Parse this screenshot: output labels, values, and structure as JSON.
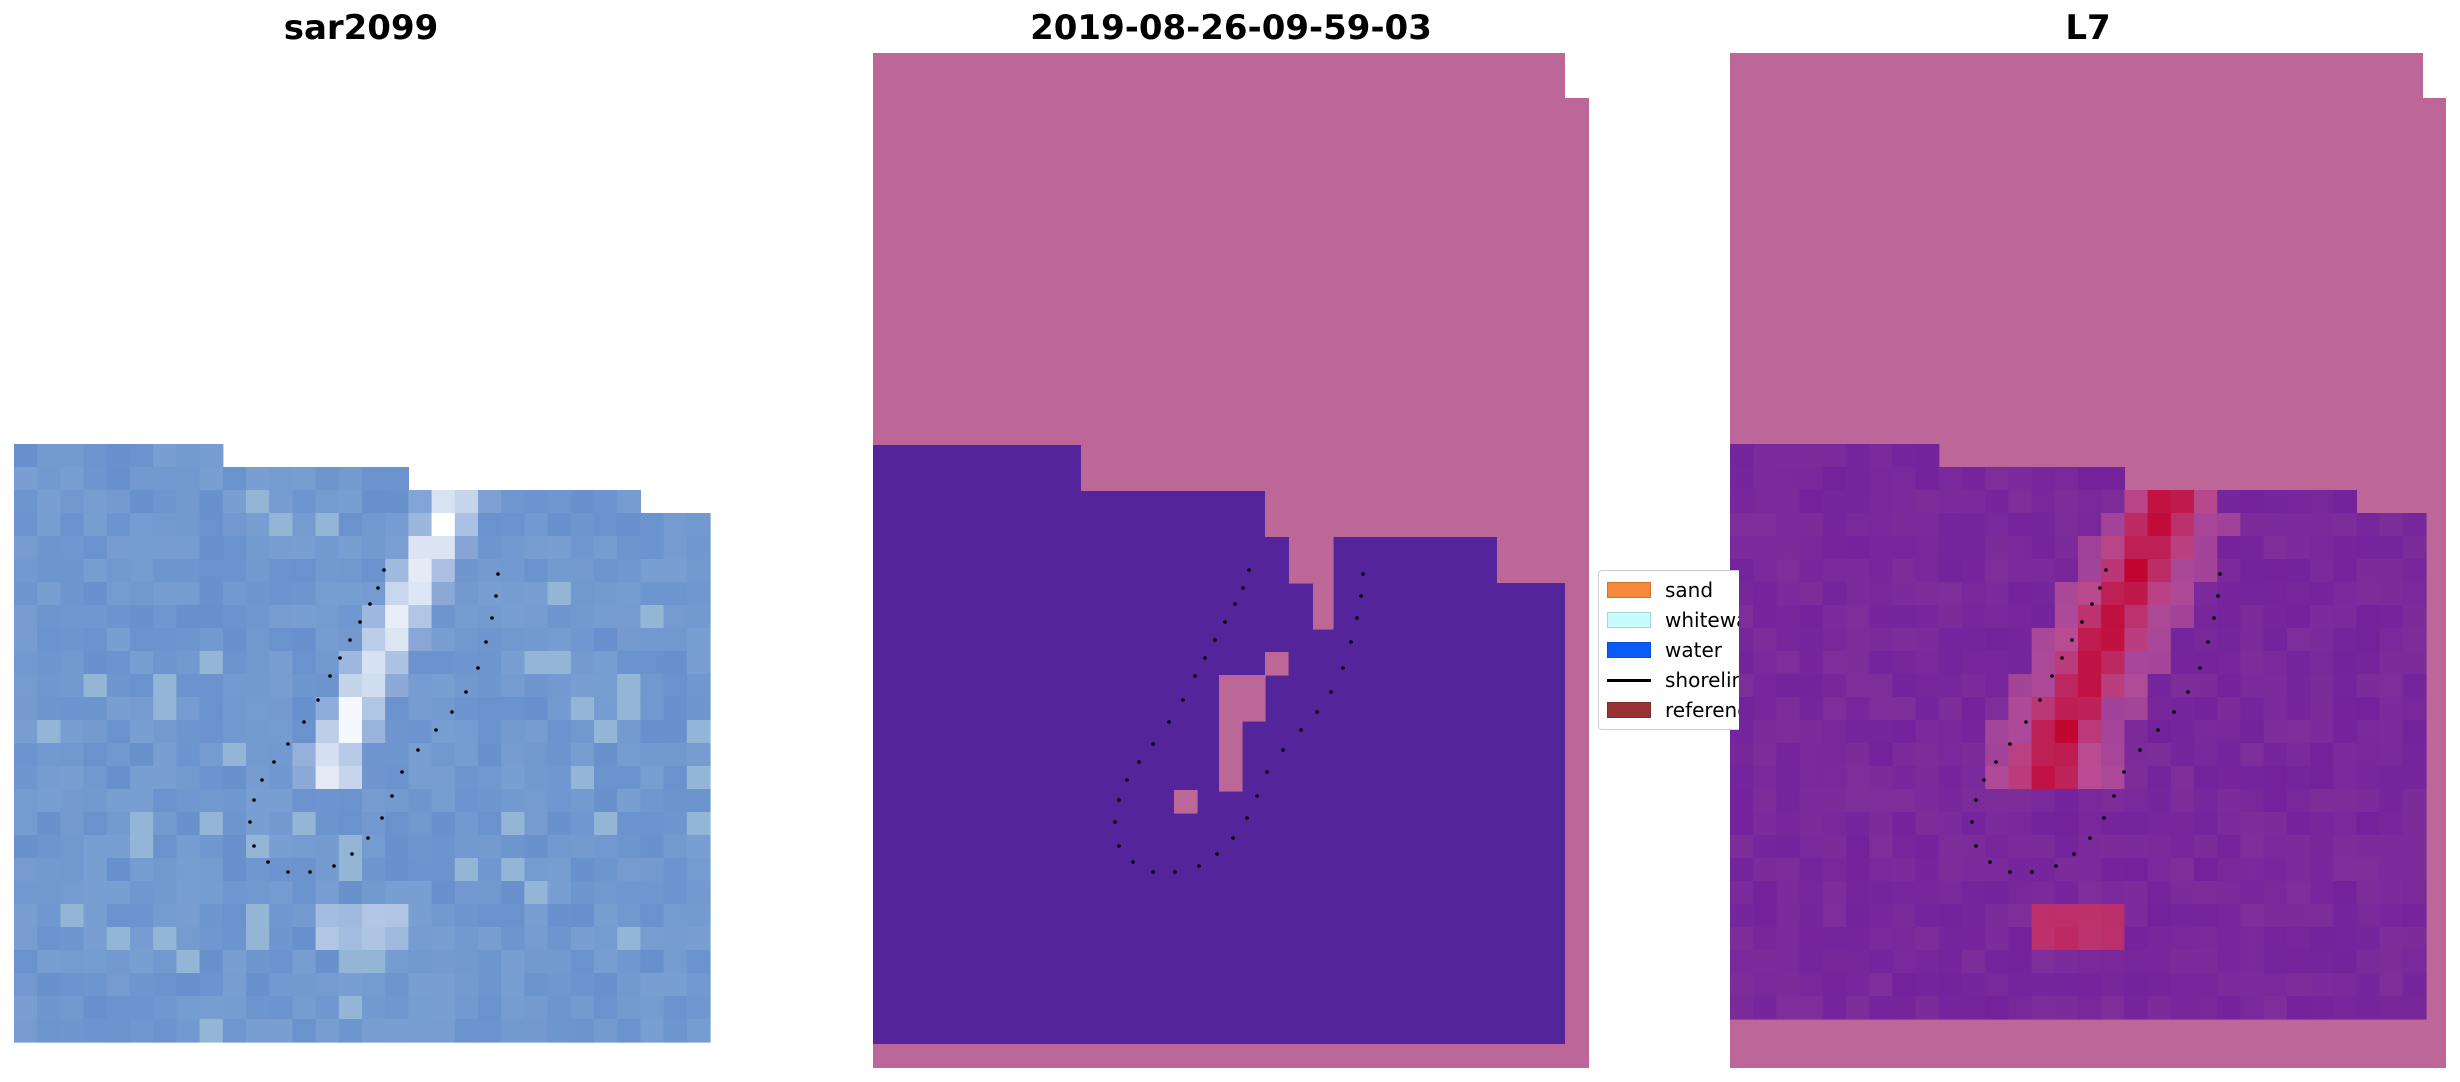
{
  "panels": {
    "rgb": {
      "title": "sar2099"
    },
    "classification": {
      "title": "2019-08-26-09-59-03"
    },
    "index": {
      "title": "L7"
    }
  },
  "legend": {
    "items": [
      {
        "label": "sand",
        "color": "#f5883a",
        "kind": "patch"
      },
      {
        "label": "whitewater",
        "color": "#c8fcfc",
        "kind": "patch"
      },
      {
        "label": "water",
        "color": "#0a5cf5",
        "kind": "patch"
      },
      {
        "label": "shoreline",
        "color": "#000000",
        "kind": "line"
      },
      {
        "label": "reference",
        "color": "#993333",
        "kind": "patch"
      }
    ]
  },
  "colors": {
    "background_mask": "#bd6698",
    "classified_water": "#53249a",
    "sar_base": "#6890cc",
    "index_base": "#7e2e9a",
    "index_high": "#c2002a"
  }
}
